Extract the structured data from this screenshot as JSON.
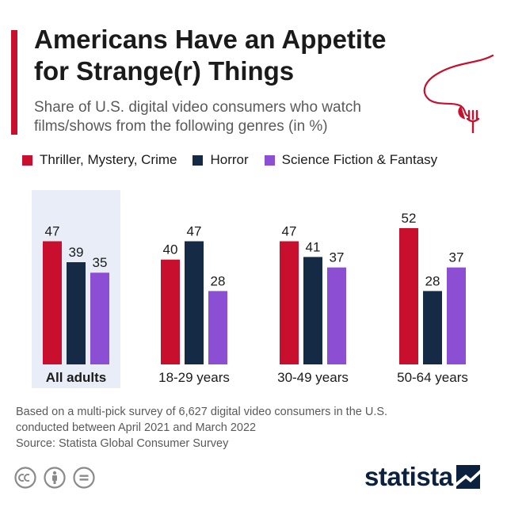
{
  "header": {
    "title_line1": "Americans Have an Appetite",
    "title_line2": "for Strange(r) Things",
    "subtitle_line1": "Share of U.S. digital video consumers who watch",
    "subtitle_line2": "films/shows from the following genres (in %)"
  },
  "colors": {
    "accent": "#c8102e",
    "thriller": "#c8102e",
    "horror": "#152b45",
    "scifi": "#8c4fd3",
    "highlight_bg": "#e8edf7",
    "brand": "#0c2140"
  },
  "legend": [
    {
      "label": "Thriller, Mystery, Crime",
      "color": "#c8102e"
    },
    {
      "label": "Horror",
      "color": "#152b45"
    },
    {
      "label": "Science Fiction & Fantasy",
      "color": "#8c4fd3"
    }
  ],
  "chart_data": {
    "type": "bar",
    "categories": [
      "All adults",
      "18-29 years",
      "30-49 years",
      "50-64 years"
    ],
    "highlighted_category": "All adults",
    "series": [
      {
        "name": "Thriller, Mystery, Crime",
        "values": [
          47,
          40,
          47,
          52
        ],
        "color": "#c8102e"
      },
      {
        "name": "Horror",
        "values": [
          39,
          47,
          41,
          28
        ],
        "color": "#152b45"
      },
      {
        "name": "Science Fiction & Fantasy",
        "values": [
          35,
          28,
          37,
          37
        ],
        "color": "#8c4fd3"
      }
    ],
    "data_labels": true,
    "ylim": [
      0,
      52
    ],
    "grid": false,
    "legend_position": "top-left"
  },
  "footer": {
    "note_line1": "Based on a multi-pick survey of 6,627 digital video consumers in the U.S.",
    "note_line2": "conducted between April 2021 and March 2022",
    "source": "Source: Statista Global Consumer Survey",
    "brand": "statista"
  },
  "icons": [
    "creative-commons-icon",
    "attribution-icon",
    "no-derivatives-icon",
    "statista-logo-icon",
    "nose-fork-icon"
  ]
}
